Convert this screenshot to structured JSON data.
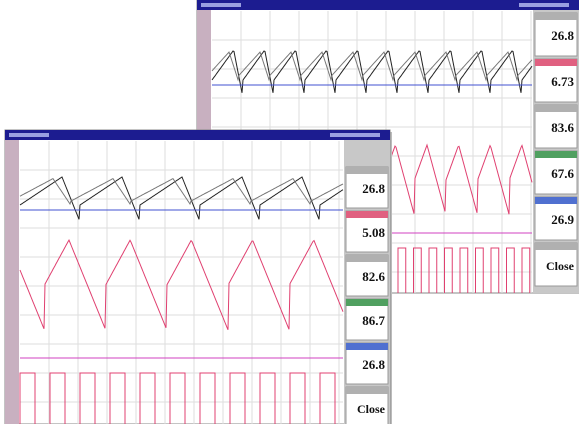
{
  "windows": [
    {
      "panels": [
        {
          "value": "26.8"
        },
        {
          "value": "6.73"
        },
        {
          "value": "83.6"
        },
        {
          "value": "67.6"
        },
        {
          "value": "26.9"
        },
        {
          "value": "Close"
        }
      ]
    },
    {
      "panels": [
        {
          "value": "26.8"
        },
        {
          "value": "5.08"
        },
        {
          "value": "82.6"
        },
        {
          "value": "86.7"
        },
        {
          "value": "26.8"
        },
        {
          "value": "Close"
        }
      ]
    }
  ]
}
